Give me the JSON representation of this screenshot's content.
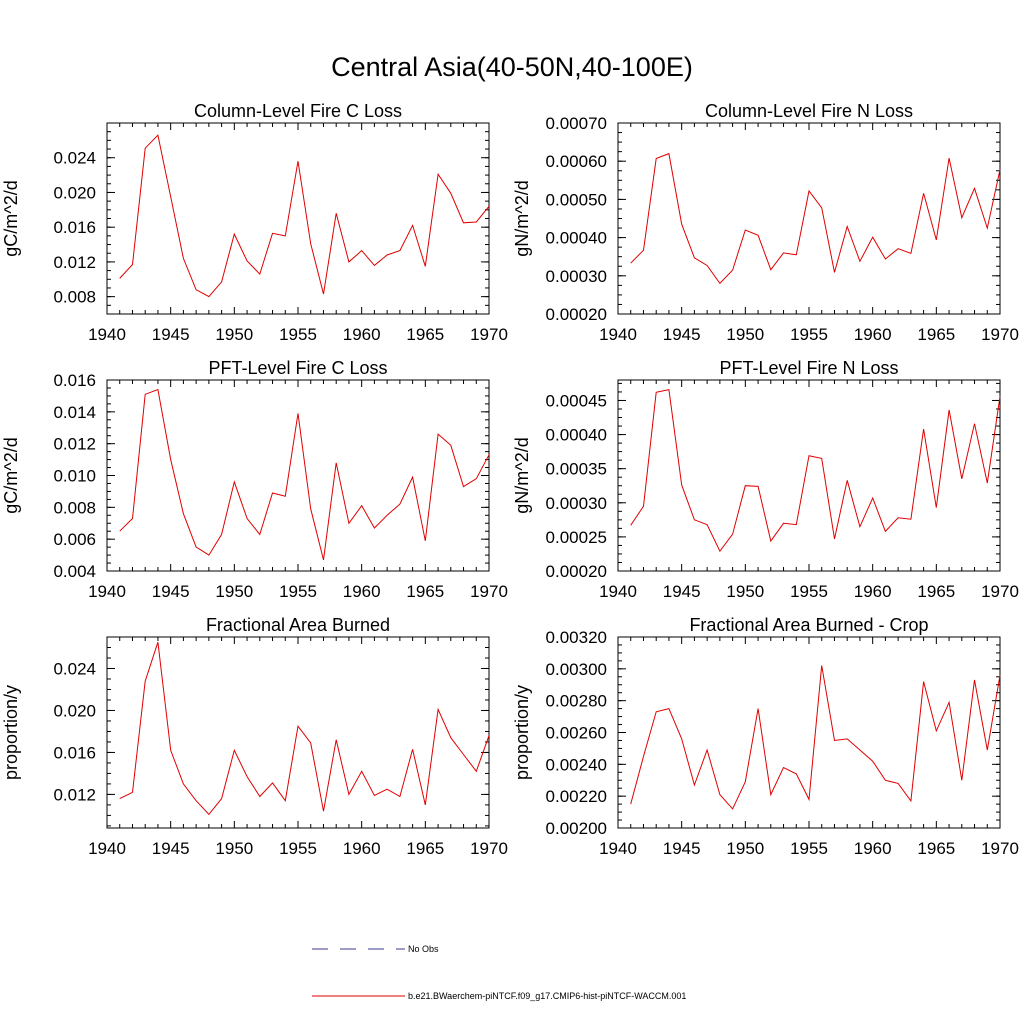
{
  "figure": {
    "title": "Central Asia(40-50N,40-100E)"
  },
  "legend": {
    "entries": [
      {
        "label": "No Obs",
        "color": "#3a3a8c",
        "style": "dashed"
      },
      {
        "label": "b.e21.BWaerchem-piNTCF.f09_g17.CMIP6-hist-piNTCF-WACCM.001",
        "color": "#e00000",
        "style": "solid"
      }
    ]
  },
  "chart_data": [
    {
      "type": "line",
      "title": "Column-Level Fire C Loss",
      "ylabel": "gC/m^2/d",
      "xlim": [
        1940,
        1970
      ],
      "ylim": [
        0.006,
        0.028
      ],
      "xticks": [
        "1940",
        "1945",
        "1950",
        "1955",
        "1960",
        "1965",
        "1970"
      ],
      "yticks": [
        0.008,
        0.012,
        0.016,
        0.02,
        0.024
      ],
      "ytick_labels": [
        "0.008",
        "0.012",
        "0.016",
        "0.020",
        "0.024"
      ],
      "x": [
        1941,
        1942,
        1943,
        1944,
        1945,
        1946,
        1947,
        1948,
        1949,
        1950,
        1951,
        1952,
        1953,
        1954,
        1955,
        1956,
        1957,
        1958,
        1959,
        1960,
        1961,
        1962,
        1963,
        1964,
        1965,
        1966,
        1967,
        1968,
        1969,
        1970
      ],
      "series": [
        {
          "color": "#e00000",
          "values": [
            0.0101,
            0.0117,
            0.0251,
            0.0266,
            0.0195,
            0.0124,
            0.0088,
            0.008,
            0.0097,
            0.0152,
            0.0121,
            0.0106,
            0.0153,
            0.015,
            0.0236,
            0.0141,
            0.0083,
            0.0176,
            0.012,
            0.0133,
            0.0116,
            0.0128,
            0.0133,
            0.0162,
            0.0115,
            0.0221,
            0.0199,
            0.0165,
            0.0166,
            0.0184
          ]
        }
      ]
    },
    {
      "type": "line",
      "title": "Column-Level Fire N Loss",
      "ylabel": "gN/m^2/d",
      "xlim": [
        1940,
        1970
      ],
      "ylim": [
        0.0002,
        0.0007
      ],
      "xticks": [
        "1940",
        "1945",
        "1950",
        "1955",
        "1960",
        "1965",
        "1970"
      ],
      "yticks": [
        0.0002,
        0.0003,
        0.0004,
        0.0005,
        0.0006,
        0.0007
      ],
      "ytick_labels": [
        "0.00020",
        "0.00030",
        "0.00040",
        "0.00050",
        "0.00060",
        "0.00070"
      ],
      "x": [
        1941,
        1942,
        1943,
        1944,
        1945,
        1946,
        1947,
        1948,
        1949,
        1950,
        1951,
        1952,
        1953,
        1954,
        1955,
        1956,
        1957,
        1958,
        1959,
        1960,
        1961,
        1962,
        1963,
        1964,
        1965,
        1966,
        1967,
        1968,
        1969,
        1970
      ],
      "series": [
        {
          "color": "#e00000",
          "values": [
            0.000333,
            0.000367,
            0.000607,
            0.00062,
            0.000435,
            0.000347,
            0.000327,
            0.00028,
            0.000315,
            0.00042,
            0.000406,
            0.000316,
            0.00036,
            0.000355,
            0.000522,
            0.000478,
            0.000309,
            0.000429,
            0.000338,
            0.000401,
            0.000344,
            0.000371,
            0.000359,
            0.000516,
            0.000394,
            0.000608,
            0.000452,
            0.000529,
            0.000425,
            0.000578
          ]
        }
      ]
    },
    {
      "type": "line",
      "title": "PFT-Level Fire C Loss",
      "ylabel": "gC/m^2/d",
      "xlim": [
        1940,
        1970
      ],
      "ylim": [
        0.004,
        0.016
      ],
      "xticks": [
        "1940",
        "1945",
        "1950",
        "1955",
        "1960",
        "1965",
        "1970"
      ],
      "yticks": [
        0.004,
        0.006,
        0.008,
        0.01,
        0.012,
        0.014,
        0.016
      ],
      "ytick_labels": [
        "0.004",
        "0.006",
        "0.008",
        "0.010",
        "0.012",
        "0.014",
        "0.016"
      ],
      "x": [
        1941,
        1942,
        1943,
        1944,
        1945,
        1946,
        1947,
        1948,
        1949,
        1950,
        1951,
        1952,
        1953,
        1954,
        1955,
        1956,
        1957,
        1958,
        1959,
        1960,
        1961,
        1962,
        1963,
        1964,
        1965,
        1966,
        1967,
        1968,
        1969,
        1970
      ],
      "series": [
        {
          "color": "#e00000",
          "values": [
            0.0065,
            0.0073,
            0.0151,
            0.0154,
            0.011,
            0.0076,
            0.0055,
            0.005,
            0.0063,
            0.0096,
            0.0073,
            0.0063,
            0.0089,
            0.0087,
            0.0139,
            0.0079,
            0.0047,
            0.0108,
            0.007,
            0.0081,
            0.0067,
            0.0075,
            0.0082,
            0.0099,
            0.0059,
            0.0126,
            0.0119,
            0.0093,
            0.0098,
            0.0113
          ]
        }
      ]
    },
    {
      "type": "line",
      "title": "PFT-Level Fire N Loss",
      "ylabel": "gN/m^2/d",
      "xlim": [
        1940,
        1970
      ],
      "ylim": [
        0.0002,
        0.00048
      ],
      "xticks": [
        "1940",
        "1945",
        "1950",
        "1955",
        "1960",
        "1965",
        "1970"
      ],
      "yticks": [
        0.0002,
        0.00025,
        0.0003,
        0.00035,
        0.0004,
        0.00045
      ],
      "ytick_labels": [
        "0.00020",
        "0.00025",
        "0.00030",
        "0.00035",
        "0.00040",
        "0.00045"
      ],
      "x": [
        1941,
        1942,
        1943,
        1944,
        1945,
        1946,
        1947,
        1948,
        1949,
        1950,
        1951,
        1952,
        1953,
        1954,
        1955,
        1956,
        1957,
        1958,
        1959,
        1960,
        1961,
        1962,
        1963,
        1964,
        1965,
        1966,
        1967,
        1968,
        1969,
        1970
      ],
      "series": [
        {
          "color": "#e00000",
          "values": [
            0.000267,
            0.000295,
            0.000462,
            0.000466,
            0.000326,
            0.000275,
            0.000268,
            0.000229,
            0.000254,
            0.000325,
            0.000324,
            0.000244,
            0.00027,
            0.000268,
            0.000369,
            0.000365,
            0.000247,
            0.000333,
            0.000265,
            0.000307,
            0.000258,
            0.000278,
            0.000276,
            0.000408,
            0.000293,
            0.000436,
            0.000335,
            0.000416,
            0.000329,
            0.000456
          ]
        }
      ]
    },
    {
      "type": "line",
      "title": "Fractional Area Burned",
      "ylabel": "proportion/y",
      "xlim": [
        1940,
        1970
      ],
      "ylim": [
        0.0088,
        0.027
      ],
      "xticks": [
        "1940",
        "1945",
        "1950",
        "1955",
        "1960",
        "1965",
        "1970"
      ],
      "yticks": [
        0.012,
        0.016,
        0.02,
        0.024
      ],
      "ytick_labels": [
        "0.012",
        "0.016",
        "0.020",
        "0.024"
      ],
      "x": [
        1941,
        1942,
        1943,
        1944,
        1945,
        1946,
        1947,
        1948,
        1949,
        1950,
        1951,
        1952,
        1953,
        1954,
        1955,
        1956,
        1957,
        1958,
        1959,
        1960,
        1961,
        1962,
        1963,
        1964,
        1965,
        1966,
        1967,
        1968,
        1969,
        1970
      ],
      "series": [
        {
          "color": "#e00000",
          "values": [
            0.0116,
            0.0122,
            0.0228,
            0.0265,
            0.0162,
            0.013,
            0.0114,
            0.0101,
            0.0116,
            0.0162,
            0.0137,
            0.0118,
            0.0131,
            0.0114,
            0.0185,
            0.0169,
            0.0104,
            0.0172,
            0.012,
            0.0142,
            0.0119,
            0.0125,
            0.0118,
            0.0163,
            0.011,
            0.0201,
            0.0174,
            0.0158,
            0.0142,
            0.0176
          ]
        }
      ]
    },
    {
      "type": "line",
      "title": "Fractional Area Burned - Crop",
      "ylabel": "proportion/y",
      "xlim": [
        1940,
        1970
      ],
      "ylim": [
        0.002,
        0.0032
      ],
      "xticks": [
        "1940",
        "1945",
        "1950",
        "1955",
        "1960",
        "1965",
        "1970"
      ],
      "yticks": [
        0.002,
        0.0022,
        0.0024,
        0.0026,
        0.0028,
        0.003,
        0.0032
      ],
      "ytick_labels": [
        "0.00200",
        "0.00220",
        "0.00240",
        "0.00260",
        "0.00280",
        "0.00300",
        "0.00320"
      ],
      "x": [
        1941,
        1942,
        1943,
        1944,
        1945,
        1946,
        1947,
        1948,
        1949,
        1950,
        1951,
        1952,
        1953,
        1954,
        1955,
        1956,
        1957,
        1958,
        1959,
        1960,
        1961,
        1962,
        1963,
        1964,
        1965,
        1966,
        1967,
        1968,
        1969,
        1970
      ],
      "series": [
        {
          "color": "#e00000",
          "values": [
            0.00215,
            0.00245,
            0.00273,
            0.00275,
            0.00256,
            0.00227,
            0.00249,
            0.00221,
            0.00212,
            0.00229,
            0.00275,
            0.00221,
            0.00238,
            0.00234,
            0.00218,
            0.00302,
            0.00255,
            0.00256,
            0.00249,
            0.00242,
            0.0023,
            0.00228,
            0.00217,
            0.00292,
            0.00261,
            0.00279,
            0.0023,
            0.00293,
            0.00249,
            0.00296
          ]
        }
      ]
    }
  ]
}
